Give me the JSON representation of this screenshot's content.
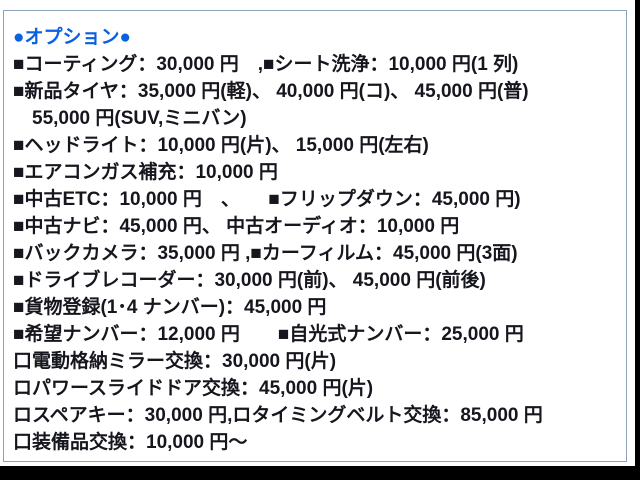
{
  "colors": {
    "background": "#ffffff",
    "heading": "#0a60e0",
    "body": "#16161e",
    "border": "#8fa3bd",
    "edge": "#000000"
  },
  "heading": {
    "text": "●オプション●"
  },
  "options_list": {
    "lines": [
      {
        "text": "■コーティング：30,000 円　,■シート洗浄：10,000 円(1 列)"
      },
      {
        "text": "■新品タイヤ：35,000 円(軽)、 40,000 円(コ)、 45,000 円(普)"
      },
      {
        "text": "　55,000 円(SUV,ミニバン)"
      },
      {
        "text": "■ヘッドライト：10,000 円(片)、 15,000 円(左右)"
      },
      {
        "text": "■エアコンガス補充：10,000 円"
      },
      {
        "text": "■中古ETC：10,000 円　、　　■フリップダウン：45,000 円)"
      },
      {
        "text": "■中古ナビ：45,000 円、 中古オーディオ：10,000 円"
      },
      {
        "text": "■バックカメラ：35,000 円 ,■カーフィルム：45,000 円(3面)"
      },
      {
        "text": "■ドライブレコーダー：30,000 円(前)、 45,000 円(前後)"
      },
      {
        "text": "■貨物登録(1･4 ナンバー)：45,000 円"
      },
      {
        "text": "■希望ナンバー：12,000 円　　■自光式ナンバー：25,000 円"
      },
      {
        "text": "口電動格納ミラー交換：30,000 円(片)"
      },
      {
        "text": "ロパワースライドドア交換：45,000 円(片)"
      },
      {
        "text": "ロスペアキー：30,000 円,ロタイミングベルト交換：85,000 円"
      },
      {
        "text": "口装備品交換：10,000 円～"
      }
    ]
  }
}
